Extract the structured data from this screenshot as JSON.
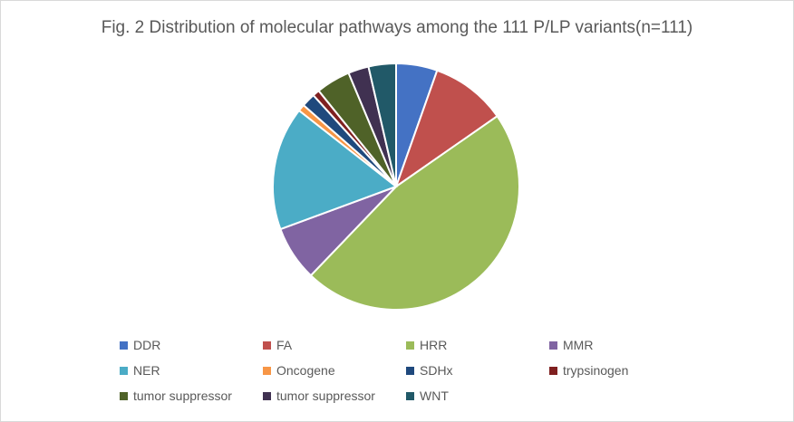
{
  "chart_data": {
    "type": "pie",
    "title": "Fig. 2 Distribution of molecular pathways among the 111 P/LP variants(n=111)",
    "legend_position": "bottom",
    "slices": [
      {
        "label": "DDR",
        "value": 6,
        "color": "#4472C4"
      },
      {
        "label": "FA",
        "value": 11,
        "color": "#C0504D"
      },
      {
        "label": "HRR",
        "value": 52,
        "color": "#9BBB59"
      },
      {
        "label": "MMR",
        "value": 8,
        "color": "#8064A2"
      },
      {
        "label": "NER",
        "value": 18,
        "color": "#4BACC6"
      },
      {
        "label": "Oncogene",
        "value": 1,
        "color": "#F79646"
      },
      {
        "label": "SDHx",
        "value": 2,
        "color": "#1F497D"
      },
      {
        "label": "trypsinogen",
        "value": 1,
        "color": "#7F2020"
      },
      {
        "label": "tumor suppressor",
        "value": 5,
        "color": "#4F6228"
      },
      {
        "label": "tumor suppressor",
        "value": 3,
        "color": "#403151"
      },
      {
        "label": "WNT",
        "value": 4,
        "color": "#215968"
      }
    ]
  }
}
